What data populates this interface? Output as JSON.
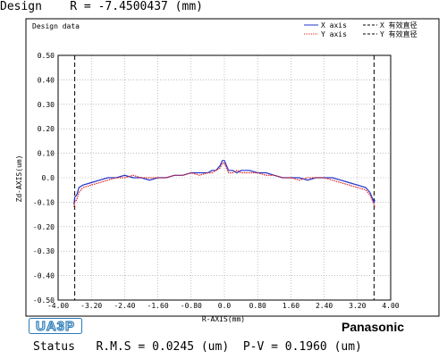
{
  "header": {
    "label": "Design",
    "formula": "R = -7.4500437 (mm)"
  },
  "status": {
    "label": "Status",
    "rms": "R.M.S = 0.0245 (um)",
    "pv": "P-V = 0.1960 (um)"
  },
  "logos": {
    "left": "UA3P",
    "right": "Panasonic"
  },
  "chart_data": {
    "type": "line",
    "title": "Design data",
    "xlabel": "R-AXIS(mm)",
    "ylabel": "Zd-AXIS(um)",
    "xlim": [
      -4.0,
      4.0
    ],
    "ylim": [
      -0.5,
      0.5
    ],
    "x_ticks": [
      "-4.00",
      "-3.20",
      "-2.40",
      "-1.60",
      "-0.80",
      "0.0",
      "0.80",
      "1.60",
      "2.40",
      "3.20",
      "4.00"
    ],
    "y_ticks": [
      "0.50",
      "0.40",
      "0.30",
      "0.20",
      "0.10",
      "0.0",
      "-0.10",
      "-0.20",
      "-0.30",
      "-0.40",
      "-0.50"
    ],
    "grid": true,
    "legend_position": "top-right",
    "effective_diameter_markers": [
      -3.6,
      3.6
    ],
    "series": [
      {
        "name": "X axis",
        "color": "#2233cc",
        "style": "solid",
        "x": [
          -3.62,
          -3.6,
          -3.55,
          -3.5,
          -3.4,
          -3.2,
          -3.0,
          -2.8,
          -2.6,
          -2.4,
          -2.2,
          -2.0,
          -1.8,
          -1.6,
          -1.4,
          -1.2,
          -1.0,
          -0.8,
          -0.6,
          -0.4,
          -0.3,
          -0.2,
          -0.1,
          -0.05,
          0.0,
          0.05,
          0.1,
          0.2,
          0.3,
          0.4,
          0.6,
          0.8,
          1.0,
          1.2,
          1.4,
          1.6,
          1.8,
          2.0,
          2.2,
          2.4,
          2.6,
          2.8,
          3.0,
          3.2,
          3.4,
          3.5,
          3.55,
          3.6,
          3.62
        ],
        "values": [
          -0.11,
          -0.08,
          -0.07,
          -0.04,
          -0.03,
          -0.02,
          -0.01,
          0.0,
          0.0,
          0.01,
          0.0,
          0.0,
          -0.01,
          0.0,
          0.0,
          0.01,
          0.01,
          0.02,
          0.02,
          0.02,
          0.03,
          0.03,
          0.05,
          0.07,
          0.07,
          0.05,
          0.03,
          0.03,
          0.02,
          0.03,
          0.03,
          0.02,
          0.02,
          0.01,
          0.0,
          0.0,
          0.0,
          -0.01,
          0.0,
          0.0,
          0.0,
          -0.01,
          -0.02,
          -0.03,
          -0.04,
          -0.06,
          -0.08,
          -0.1,
          -0.09
        ]
      },
      {
        "name": "Y axis",
        "color": "#dd2222",
        "style": "dotted",
        "x": [
          -3.62,
          -3.6,
          -3.55,
          -3.5,
          -3.4,
          -3.2,
          -3.0,
          -2.8,
          -2.6,
          -2.4,
          -2.2,
          -2.0,
          -1.8,
          -1.6,
          -1.4,
          -1.2,
          -1.0,
          -0.8,
          -0.6,
          -0.4,
          -0.3,
          -0.2,
          -0.1,
          -0.05,
          0.0,
          0.05,
          0.1,
          0.2,
          0.3,
          0.4,
          0.6,
          0.8,
          1.0,
          1.2,
          1.4,
          1.6,
          1.8,
          2.0,
          2.2,
          2.4,
          2.6,
          2.8,
          3.0,
          3.2,
          3.4,
          3.5,
          3.55,
          3.6,
          3.62
        ],
        "values": [
          -0.12,
          -0.1,
          -0.09,
          -0.06,
          -0.04,
          -0.03,
          -0.02,
          -0.01,
          0.0,
          0.0,
          0.01,
          0.0,
          0.0,
          0.0,
          0.0,
          0.01,
          0.01,
          0.02,
          0.01,
          0.02,
          0.02,
          0.03,
          0.04,
          0.06,
          0.06,
          0.04,
          0.02,
          0.02,
          0.03,
          0.02,
          0.02,
          0.02,
          0.01,
          0.01,
          0.0,
          0.0,
          -0.01,
          0.0,
          0.0,
          0.0,
          -0.01,
          -0.02,
          -0.03,
          -0.04,
          -0.05,
          -0.07,
          -0.09,
          -0.11,
          -0.12
        ]
      }
    ],
    "legend_entries": [
      {
        "name": "X axis",
        "color": "#2233cc",
        "style": "solid"
      },
      {
        "name": "X 有效直径",
        "color": "#000000",
        "style": "dashed"
      },
      {
        "name": "Y axis",
        "color": "#dd2222",
        "style": "dotted"
      },
      {
        "name": "Y 有效直径",
        "color": "#000000",
        "style": "dashed"
      }
    ]
  }
}
